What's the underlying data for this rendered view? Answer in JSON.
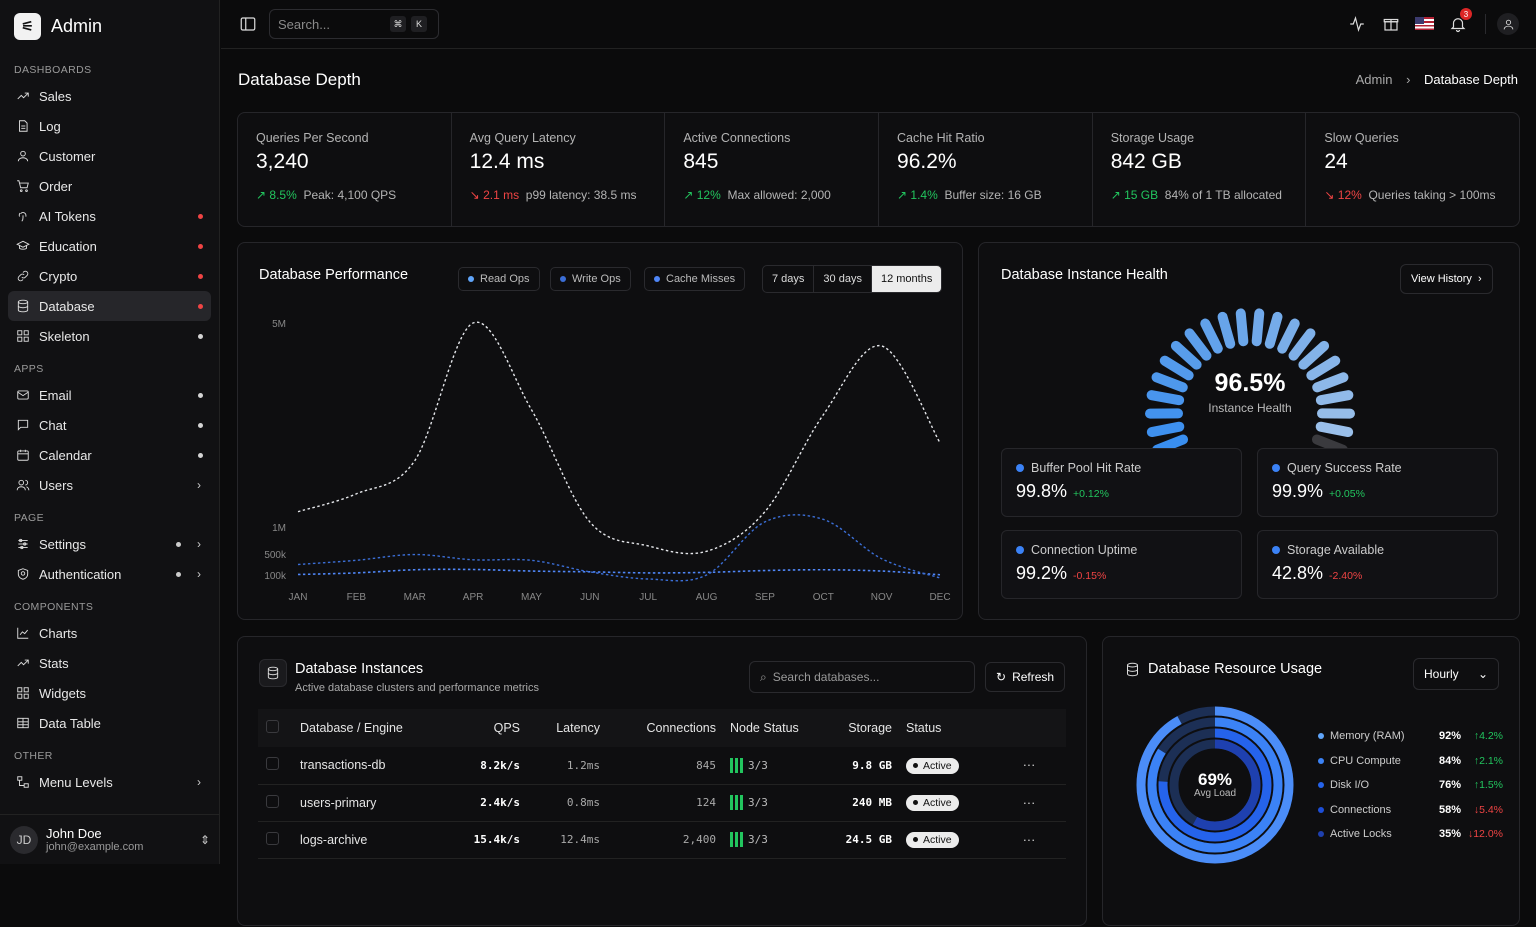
{
  "app": {
    "name": "Admin"
  },
  "sidebar": {
    "sections": [
      {
        "title": "DASHBOARDS",
        "items": [
          {
            "label": "Sales",
            "icon": "trending-up-icon"
          },
          {
            "label": "Log",
            "icon": "file-icon"
          },
          {
            "label": "Customer",
            "icon": "user-icon"
          },
          {
            "label": "Order",
            "icon": "cart-icon"
          },
          {
            "label": "AI Tokens",
            "icon": "fingerprint-icon",
            "dot": "#ef4444"
          },
          {
            "label": "Education",
            "icon": "graduation-cap-icon",
            "dot": "#ef4444"
          },
          {
            "label": "Crypto",
            "icon": "link-icon",
            "dot": "#ef4444"
          },
          {
            "label": "Database",
            "icon": "database-icon",
            "dot": "#ef4444",
            "active": true
          },
          {
            "label": "Skeleton",
            "icon": "grid-icon",
            "dot": "#d4d4d4"
          }
        ]
      },
      {
        "title": "APPS",
        "items": [
          {
            "label": "Email",
            "icon": "mail-icon",
            "dot": "#d4d4d4"
          },
          {
            "label": "Chat",
            "icon": "chat-icon",
            "dot": "#d4d4d4"
          },
          {
            "label": "Calendar",
            "icon": "calendar-icon",
            "dot": "#d4d4d4"
          },
          {
            "label": "Users",
            "icon": "users-icon",
            "chevron": true
          }
        ]
      },
      {
        "title": "PAGE",
        "items": [
          {
            "label": "Settings",
            "icon": "sliders-icon",
            "chevron": true,
            "dot2": true
          },
          {
            "label": "Authentication",
            "icon": "shield-icon",
            "chevron": true,
            "dot2": true
          }
        ]
      },
      {
        "title": "COMPONENTS",
        "items": [
          {
            "label": "Charts",
            "icon": "chart-icon"
          },
          {
            "label": "Stats",
            "icon": "trending-up-icon"
          },
          {
            "label": "Widgets",
            "icon": "grid-icon"
          },
          {
            "label": "Data Table",
            "icon": "table-icon"
          }
        ]
      },
      {
        "title": "OTHER",
        "items": [
          {
            "label": "Menu Levels",
            "icon": "network-icon",
            "chevron": true
          }
        ]
      }
    ]
  },
  "user": {
    "initials": "JD",
    "name": "John Doe",
    "email": "john@example.com"
  },
  "topbar": {
    "search_placeholder": "Search...",
    "kbd1": "⌘",
    "kbd2": "K",
    "notif_count": "3"
  },
  "page": {
    "title": "Database Depth",
    "crumb_root": "Admin",
    "crumb_current": "Database Depth"
  },
  "stats": [
    {
      "label": "Queries Per Second",
      "value": "3,240",
      "delta": "8.5%",
      "dir": "up",
      "note": "Peak: 4,100 QPS"
    },
    {
      "label": "Avg Query Latency",
      "value": "12.4 ms",
      "delta": "2.1 ms",
      "dir": "down",
      "note": "p99 latency: 38.5 ms"
    },
    {
      "label": "Active Connections",
      "value": "845",
      "delta": "12%",
      "dir": "up",
      "note": "Max allowed: 2,000"
    },
    {
      "label": "Cache Hit Ratio",
      "value": "96.2%",
      "delta": "1.4%",
      "dir": "up",
      "note": "Buffer size: 16 GB"
    },
    {
      "label": "Storage Usage",
      "value": "842 GB",
      "delta": "15 GB",
      "dir": "up",
      "note": "84% of 1 TB allocated"
    },
    {
      "label": "Slow Queries",
      "value": "24",
      "delta": "12%",
      "dir": "down",
      "note": "Queries taking > 100ms"
    }
  ],
  "perf": {
    "title": "Database Performance",
    "legend": [
      "Read Ops",
      "Write Ops",
      "Cache Misses"
    ],
    "ranges": [
      "7 days",
      "30 days",
      "12 months"
    ],
    "selected_range": "12 months"
  },
  "chart_data": {
    "type": "line",
    "categories": [
      "JAN",
      "FEB",
      "MAR",
      "APR",
      "MAY",
      "JUN",
      "JUL",
      "AUG",
      "SEP",
      "OCT",
      "NOV",
      "DEC"
    ],
    "ytick_labels": [
      "5M",
      "1M",
      "500k",
      "100k"
    ],
    "series": [
      {
        "name": "Read Ops",
        "color": "#e5e7eb",
        "values": [
          1300000,
          1650000,
          2300000,
          5000000,
          3300000,
          1100000,
          650000,
          550000,
          1300000,
          3200000,
          4550000,
          2650000
        ]
      },
      {
        "name": "Write Ops",
        "color": "#3b6ed6",
        "values": [
          300000,
          380000,
          490000,
          390000,
          380000,
          160000,
          60000,
          100000,
          1100000,
          1150000,
          410000,
          70000
        ]
      },
      {
        "name": "Cache Misses",
        "color": "#4f86f7",
        "values": [
          110000,
          140000,
          200000,
          205000,
          175000,
          160000,
          140000,
          150000,
          185000,
          200000,
          175000,
          105000
        ]
      }
    ]
  },
  "health": {
    "title": "Database Instance Health",
    "button": "View History",
    "value": "96.5%",
    "label": "Instance Health",
    "gauge_fraction": 0.965,
    "cards": [
      {
        "label": "Buffer Pool Hit Rate",
        "value": "99.8%",
        "delta": "+0.12%",
        "dir": "up"
      },
      {
        "label": "Query Success Rate",
        "value": "99.9%",
        "delta": "+0.05%",
        "dir": "up"
      },
      {
        "label": "Connection Uptime",
        "value": "99.2%",
        "delta": "-0.15%",
        "dir": "down"
      },
      {
        "label": "Storage Available",
        "value": "42.8%",
        "delta": "-2.40%",
        "dir": "down"
      }
    ]
  },
  "instances": {
    "title": "Database Instances",
    "subtitle": "Active database clusters and performance metrics",
    "search_placeholder": "Search databases...",
    "refresh": "Refresh",
    "columns": [
      "Database / Engine",
      "QPS",
      "Latency",
      "Connections",
      "Node Status",
      "Storage",
      "Status"
    ],
    "rows": [
      {
        "name": "transactions-db",
        "qps": "8.2k/s",
        "latency": "1.2ms",
        "conn": "845",
        "nodes": "3/3",
        "storage": "9.8 GB",
        "status": "Active"
      },
      {
        "name": "users-primary",
        "qps": "2.4k/s",
        "latency": "0.8ms",
        "conn": "124",
        "nodes": "3/3",
        "storage": "240 MB",
        "status": "Active"
      },
      {
        "name": "logs-archive",
        "qps": "15.4k/s",
        "latency": "12.4ms",
        "conn": "2,400",
        "nodes": "3/3",
        "storage": "24.5 GB",
        "status": "Active"
      }
    ]
  },
  "resource": {
    "title": "Database Resource Usage",
    "select": "Hourly",
    "center_value": "69%",
    "center_label": "Avg Load",
    "items": [
      {
        "label": "Memory (RAM)",
        "pct": "92%",
        "delta": "4.2%",
        "dir": "up",
        "color": "#60a5fa"
      },
      {
        "label": "CPU Compute",
        "pct": "84%",
        "delta": "2.1%",
        "dir": "up",
        "color": "#3b82f6"
      },
      {
        "label": "Disk I/O",
        "pct": "76%",
        "delta": "1.5%",
        "dir": "up",
        "color": "#2563eb"
      },
      {
        "label": "Connections",
        "pct": "58%",
        "delta": "5.4%",
        "dir": "down",
        "color": "#1d4ed8"
      },
      {
        "label": "Active Locks",
        "pct": "35%",
        "delta": "12.0%",
        "dir": "down",
        "color": "#1e40af"
      }
    ]
  }
}
